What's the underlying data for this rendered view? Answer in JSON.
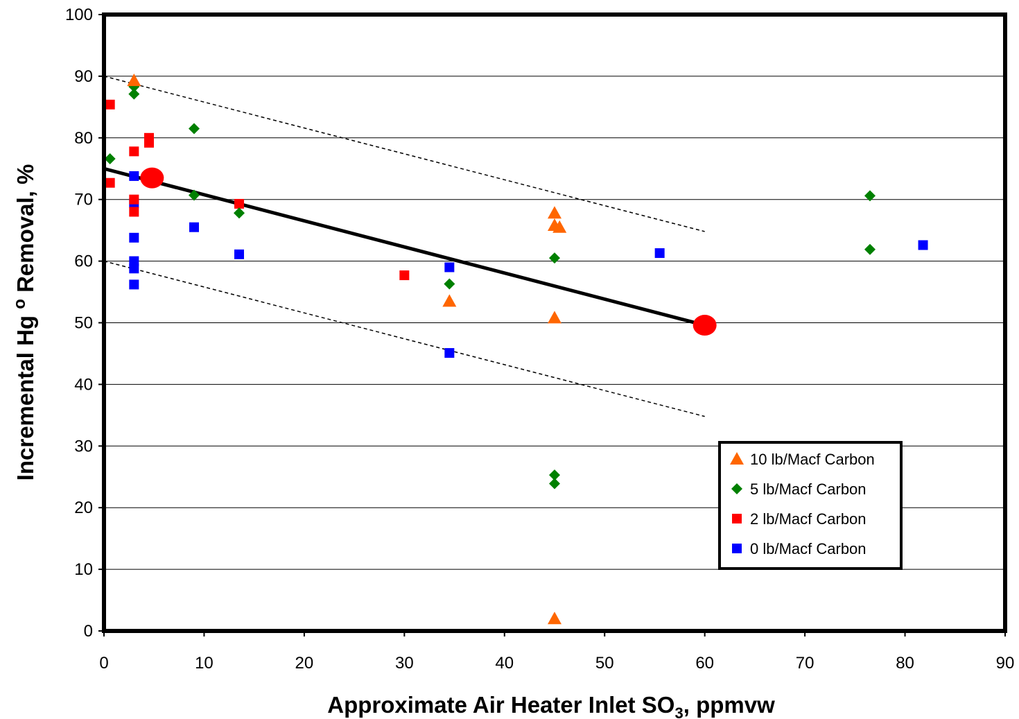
{
  "chart_data": {
    "type": "scatter",
    "title": "",
    "xlabel_main": "Approximate Air Heater Inlet SO",
    "xlabel_sub": "3",
    "xlabel_tail": ", ppmvw",
    "ylabel": "Incremental Hg° Removal, %",
    "ylabel_parts": [
      "Incremental Hg ",
      "o",
      " Removal, %"
    ],
    "xlim": [
      0,
      90
    ],
    "ylim": [
      0,
      100
    ],
    "x_ticks": [
      "0",
      "10",
      "20",
      "30",
      "40",
      "50",
      "60",
      "70",
      "80",
      "90"
    ],
    "y_ticks": [
      "0",
      "10",
      "20",
      "30",
      "40",
      "50",
      "60",
      "70",
      "80",
      "90",
      "100"
    ],
    "grid": "horizontal",
    "legend_position": "bottom-right",
    "series": [
      {
        "name": "10 lb/Macf Carbon",
        "marker": "triangle",
        "color": "#FF6600",
        "points": [
          [
            3,
            89.3
          ],
          [
            34.5,
            53.5
          ],
          [
            45,
            67.8
          ],
          [
            45,
            65.8
          ],
          [
            45.5,
            65.5
          ],
          [
            45,
            50.8
          ],
          [
            45,
            2
          ]
        ]
      },
      {
        "name": "5 lb/Macf Carbon",
        "marker": "diamond",
        "color": "#008000",
        "points": [
          [
            0.6,
            76.6
          ],
          [
            3,
            88.3
          ],
          [
            3,
            87.1
          ],
          [
            9,
            81.5
          ],
          [
            9,
            70.7
          ],
          [
            13.5,
            67.8
          ],
          [
            34.5,
            56.3
          ],
          [
            45,
            60.5
          ],
          [
            45,
            25.3
          ],
          [
            45,
            23.9
          ],
          [
            76.5,
            70.6
          ],
          [
            76.5,
            61.9
          ]
        ]
      },
      {
        "name": "2 lb/Macf Carbon",
        "marker": "square",
        "color": "#FF0000",
        "points": [
          [
            0.6,
            85.4
          ],
          [
            0.6,
            72.7
          ],
          [
            3,
            77.8
          ],
          [
            3,
            70
          ],
          [
            3,
            68
          ],
          [
            4.5,
            80
          ],
          [
            4.5,
            79.2
          ],
          [
            13.5,
            69.3
          ],
          [
            30,
            57.7
          ]
        ]
      },
      {
        "name": "0 lb/Macf Carbon",
        "marker": "square",
        "color": "#0000FF",
        "points": [
          [
            3,
            73.8
          ],
          [
            3,
            69.4
          ],
          [
            3,
            63.8
          ],
          [
            3,
            60
          ],
          [
            3,
            58.8
          ],
          [
            3,
            56.2
          ],
          [
            9,
            65.5
          ],
          [
            13.5,
            61.1
          ],
          [
            34.5,
            59
          ],
          [
            34.5,
            45.1
          ],
          [
            55.5,
            61.3
          ],
          [
            81.8,
            62.6
          ]
        ]
      }
    ],
    "trend_line": {
      "color": "#000000",
      "points": [
        [
          0,
          75
        ],
        [
          60,
          49.6
        ]
      ]
    },
    "bounds": [
      {
        "points": [
          [
            0,
            90
          ],
          [
            60,
            64.8
          ]
        ]
      },
      {
        "points": [
          [
            0,
            60
          ],
          [
            60,
            34.8
          ]
        ]
      }
    ],
    "highlight_points": {
      "color": "#FF0000",
      "points": [
        [
          4.8,
          73.5
        ],
        [
          60,
          49.6
        ]
      ]
    }
  }
}
